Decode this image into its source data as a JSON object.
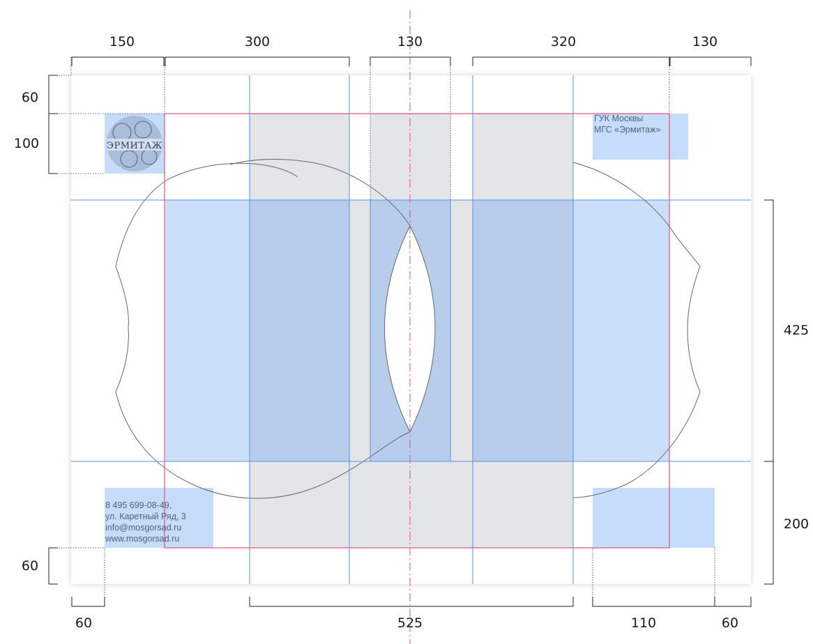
{
  "header": {
    "organization": [
      "ГУК Москвы",
      "МГС «Эрмитаж»"
    ]
  },
  "logo": {
    "text": "ЭРМИТАЖ"
  },
  "contacts": [
    "8 495 699-08-49,",
    "ул. Каретный Ряд, 3",
    "info@mosgorsad.ru",
    "www.mosgorsad.ru"
  ],
  "dimensions": {
    "top": [
      "150",
      "300",
      "130",
      "320",
      "130"
    ],
    "left_top": [
      "60",
      "100"
    ],
    "left_bottom": [
      "60"
    ],
    "right": [
      "425",
      "200"
    ],
    "bottom": [
      "60",
      "525",
      "110",
      "60"
    ]
  },
  "colors": {
    "guide_blue": "#5b8ee6",
    "fill_blue": "#c5dcfb",
    "fill_gray": "#e4e5e8",
    "margin_red": "#e0507a",
    "axis_red": "#e0507a"
  }
}
